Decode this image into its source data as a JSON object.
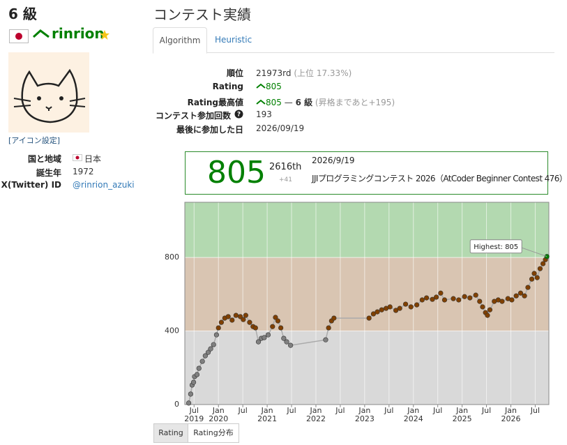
{
  "profile": {
    "grade": "6 級",
    "username": "rinrion",
    "icon_link": "[アイコン設定]",
    "fields": [
      {
        "label": "国と地域",
        "value": "日本"
      },
      {
        "label": "誕生年",
        "value": "1972"
      },
      {
        "label": "X(Twitter) ID",
        "value": "@rinrion_azuki"
      }
    ]
  },
  "contest_history": {
    "title": "コンテスト実績",
    "tabs": [
      "Algorithm",
      "Heuristic"
    ],
    "stats": [
      {
        "label": "順位",
        "value": "21973rd",
        "note": "(上位 17.33%)"
      },
      {
        "label": "Rating",
        "value": "805"
      },
      {
        "label": "Rating最高値",
        "value": "805",
        "separator": "—",
        "grade": "6 級",
        "note": "(昇格まであと+195)"
      },
      {
        "label": "コンテスト参加回数",
        "value": "193"
      },
      {
        "label": "最後に参加した日",
        "value": "2026/09/19"
      }
    ],
    "latest": {
      "rating": "805",
      "rank": "2616th",
      "diff": "+41",
      "date": "2026/9/19",
      "contest": "JJIプログラミングコンテスト 2026（AtCoder Beginner Contest 476）"
    },
    "chart_buttons": [
      "Rating",
      "Rating分布"
    ]
  },
  "chart_data": {
    "type": "line",
    "line_color": "#aaaaaa",
    "annotation": "Highest: 805",
    "x": [
      2019.39,
      2019.43,
      2019.46,
      2019.49,
      2019.51,
      2019.56,
      2019.6,
      2019.67,
      2019.73,
      2019.79,
      2019.84,
      2019.9,
      2019.96,
      2020.0,
      2020.06,
      2020.13,
      2020.2,
      2020.28,
      2020.36,
      2020.45,
      2020.51,
      2020.56,
      2020.64,
      2020.71,
      2020.76,
      2020.82,
      2020.88,
      2020.94,
      2021.02,
      2021.11,
      2021.17,
      2021.22,
      2021.28,
      2021.34,
      2021.4,
      2021.48,
      2022.2,
      2022.26,
      2022.32,
      2022.37,
      2023.09,
      2023.18,
      2023.26,
      2023.35,
      2023.44,
      2023.52,
      2023.64,
      2023.72,
      2023.84,
      2023.95,
      2024.07,
      2024.18,
      2024.27,
      2024.39,
      2024.47,
      2024.56,
      2024.64,
      2024.82,
      2024.93,
      2025.05,
      2025.16,
      2025.28,
      2025.36,
      2025.42,
      2025.48,
      2025.52,
      2025.57,
      2025.66,
      2025.74,
      2025.82,
      2025.94,
      2026.02,
      2026.11,
      2026.2,
      2026.28,
      2026.35,
      2026.43,
      2026.48,
      2026.54,
      2026.6,
      2026.66,
      2026.71,
      2026.74
    ],
    "values": [
      8,
      57,
      106,
      121,
      152,
      163,
      197,
      235,
      265,
      284,
      303,
      326,
      379,
      417,
      447,
      470,
      478,
      459,
      485,
      478,
      462,
      485,
      447,
      424,
      417,
      341,
      360,
      364,
      379,
      424,
      474,
      455,
      417,
      360,
      341,
      322,
      352,
      417,
      455,
      470,
      470,
      493,
      504,
      515,
      523,
      531,
      512,
      523,
      546,
      531,
      542,
      569,
      580,
      572,
      584,
      606,
      569,
      576,
      569,
      587,
      580,
      595,
      561,
      531,
      500,
      485,
      515,
      561,
      569,
      561,
      576,
      569,
      591,
      606,
      591,
      637,
      682,
      713,
      690,
      739,
      766,
      788,
      805
    ],
    "xlim": [
      2019.31,
      2026.78
    ],
    "ylim": [
      0,
      1100
    ],
    "yticks": [
      0,
      400,
      800
    ],
    "xticks": [
      {
        "value": 2019.5,
        "label": "Jul 2019"
      },
      {
        "value": 2020.0,
        "label": "Jan 2020"
      },
      {
        "value": 2020.5,
        "label": "Jul"
      },
      {
        "value": 2021.0,
        "label": "Jan 2021"
      },
      {
        "value": 2021.5,
        "label": "Jul"
      },
      {
        "value": 2022.0,
        "label": "Jan 2022"
      },
      {
        "value": 2022.5,
        "label": "Jul"
      },
      {
        "value": 2023.0,
        "label": "Jan 2023"
      },
      {
        "value": 2023.5,
        "label": "Jul"
      },
      {
        "value": 2024.0,
        "label": "Jan 2024"
      },
      {
        "value": 2024.5,
        "label": "Jul"
      },
      {
        "value": 2025.0,
        "label": "Jan 2025"
      },
      {
        "value": 2025.5,
        "label": "Jul"
      },
      {
        "value": 2026.0,
        "label": "Jan 2026"
      },
      {
        "value": 2026.5,
        "label": "Jul"
      }
    ],
    "bands": [
      {
        "from": 0,
        "to": 400,
        "color": "#d9d9d9",
        "dot": "#808080"
      },
      {
        "from": 400,
        "to": 800,
        "color": "#d9c5b2",
        "dot": "#804000"
      },
      {
        "from": 800,
        "to": 1200,
        "color": "#b3d9b0",
        "dot": "#008000"
      }
    ]
  }
}
